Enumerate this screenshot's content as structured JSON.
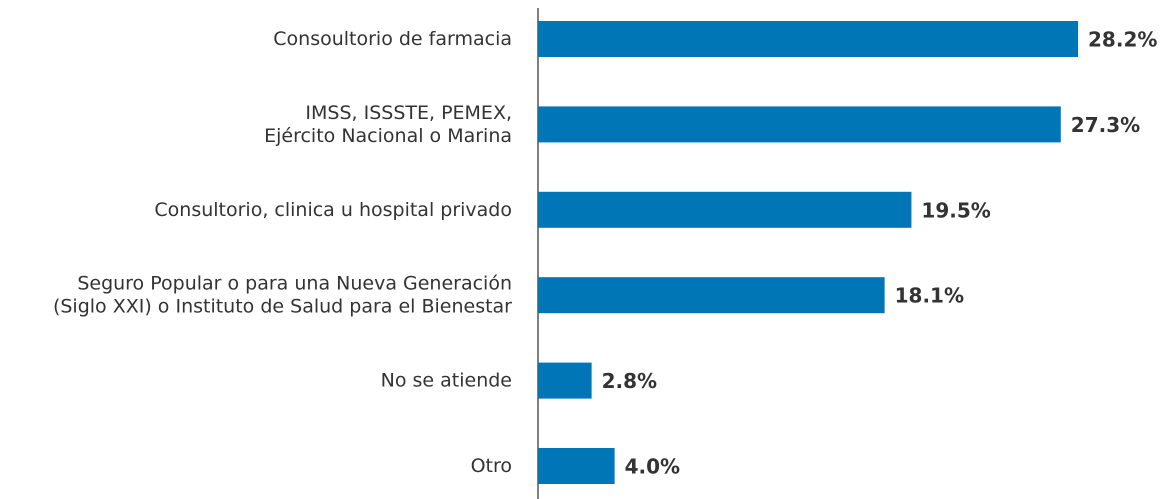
{
  "chart_data": {
    "type": "hbar",
    "categories": [
      "Consoultorio de farmacia",
      "IMSS, ISSSTE, PEMEX,\nEjército Nacional o Marina",
      "Consultorio, clinica u hospital privado",
      "Seguro Popular o para una Nueva Generación\n(Siglo XXI) o Instituto de Salud para el Bienestar",
      "No se atiende",
      "Otro"
    ],
    "values": [
      28.2,
      27.3,
      19.5,
      18.1,
      2.8,
      4.0
    ],
    "value_labels": [
      "28.2%",
      "27.3%",
      "19.5%",
      "18.1%",
      "2.8%",
      "4.0%"
    ],
    "color": "#0076b6"
  }
}
